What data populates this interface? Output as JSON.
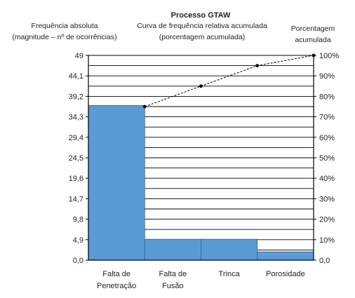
{
  "chart_data": {
    "type": "bar",
    "title": "Processo GTAW",
    "left_axis_label_line1": "Frequência absoluta",
    "left_axis_label_line2": "(magnitude – nº de ocorrências)",
    "curve_label_line1": "Curva de frequência relativa acumulada",
    "curve_label_line2": "(porcentagem acumulada)",
    "right_axis_label_line1": "Porcentagem",
    "right_axis_label_line2": "acumulada",
    "categories": [
      [
        "Falta de",
        "Penetração"
      ],
      [
        "Falta de",
        "Fusão"
      ],
      [
        "Trinca"
      ],
      [
        "Porosidade"
      ]
    ],
    "values": [
      37,
      5,
      5,
      2
    ],
    "cumulative_percent": [
      75,
      85,
      95,
      100
    ],
    "ylim": [
      0,
      49
    ],
    "y_ticks": [
      0.0,
      4.9,
      9.8,
      14.7,
      19.6,
      24.5,
      29.4,
      34.3,
      39.2,
      44.1,
      49
    ],
    "y_tick_labels": [
      "0,0",
      "4,9",
      "9,8",
      "14,7",
      "19,6",
      "24,5",
      "29,4",
      "34,3",
      "39,2",
      "44,1",
      "49"
    ],
    "y2lim": [
      0,
      100
    ],
    "y2_ticks": [
      0,
      10,
      20,
      30,
      40,
      50,
      60,
      70,
      80,
      90,
      100
    ],
    "y2_tick_labels": [
      "0,0",
      "10%",
      "20%",
      "30%",
      "40%",
      "50%",
      "60%",
      "70%",
      "80%",
      "90%",
      "100%"
    ],
    "grid_rows": 20,
    "bar_color": "#5b9bd5",
    "bar_edge_color": "#2f5f8f",
    "curve_color": "#000000"
  }
}
